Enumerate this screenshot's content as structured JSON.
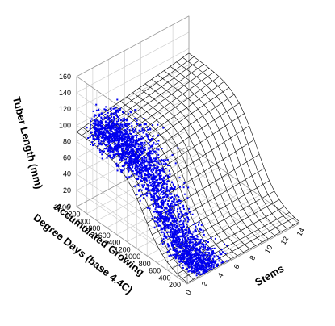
{
  "chart_data": {
    "type": "scatter",
    "subtype": "3d-scatter-with-fitted-surface",
    "title": "",
    "xlabel": "Stems",
    "ylabel": "Accumulated Growing Degree Days (base 4.4C)",
    "zlabel": "Tuber Length (mm)",
    "xlim": [
      0,
      14
    ],
    "ylim": [
      200,
      2400
    ],
    "zlim": [
      0,
      160
    ],
    "x_ticks": [
      "0",
      "2",
      "4",
      "6",
      "8",
      "10",
      "12",
      "14"
    ],
    "y_ticks": [
      "200",
      "400",
      "600",
      "800",
      "1000",
      "1200",
      "1400",
      "1600",
      "1800",
      "2000",
      "2200",
      "2400"
    ],
    "z_ticks": [
      "0",
      "20",
      "40",
      "60",
      "80",
      "100",
      "120",
      "140",
      "160"
    ],
    "grid": true,
    "point_color": "#0000ee",
    "surface_color": "#000000",
    "surface_description": "sigmoid fitted surface; tuber length ~0 mm at low degree days rising to ~90-115 mm at high degree days, slight increase with more stems",
    "points_description": "dense cloud of several thousand observations concentrated at low stem counts (roughly 1-6 stems) across the full degree-day range, tuber length about 0-130 mm"
  }
}
